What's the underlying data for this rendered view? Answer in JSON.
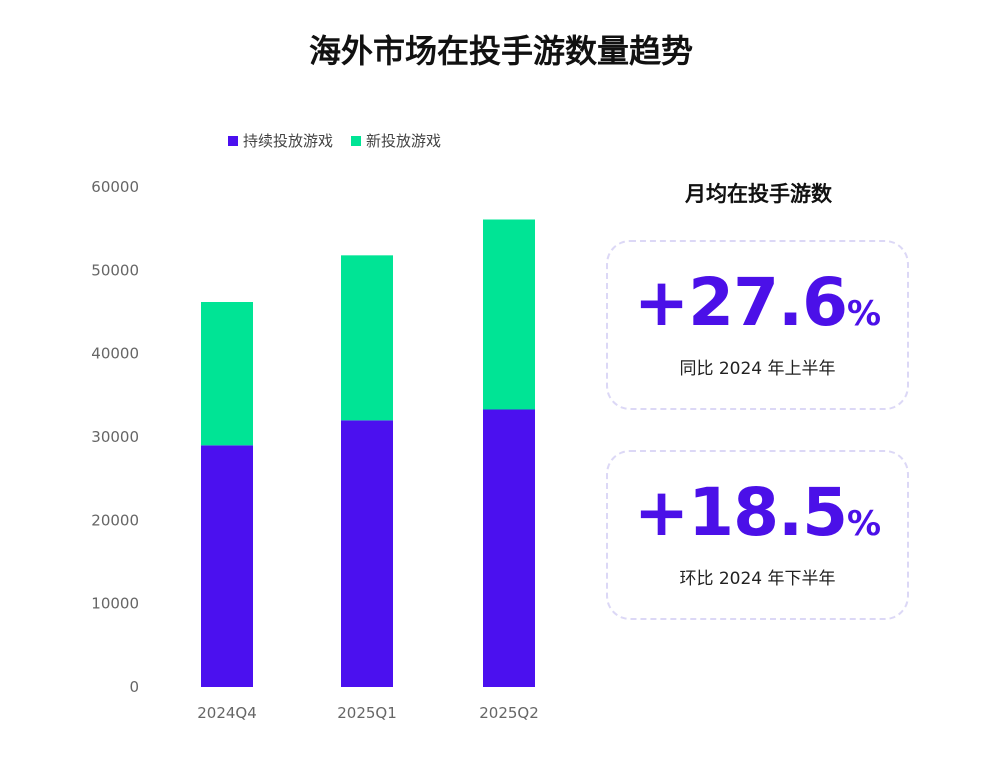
{
  "title": "海外市场在投手游数量趋势",
  "legend": [
    {
      "label": "持续投放游戏",
      "color": "#4b10ef"
    },
    {
      "label": "新投放游戏",
      "color": "#00e495"
    }
  ],
  "chart_data": {
    "type": "bar",
    "stacked": true,
    "title": "海外市场在投手游数量趋势",
    "categories": [
      "2024Q4",
      "2025Q1",
      "2025Q2"
    ],
    "series": [
      {
        "name": "持续投放游戏",
        "color": "#4b10ef",
        "values": [
          29000,
          32000,
          33300
        ]
      },
      {
        "name": "新投放游戏",
        "color": "#00e495",
        "values": [
          17200,
          19800,
          22800
        ]
      }
    ],
    "xlabel": "",
    "ylabel": "",
    "ylim": [
      0,
      60000
    ],
    "yticks": [
      0,
      10000,
      20000,
      30000,
      40000,
      50000,
      60000
    ],
    "grid": false,
    "legend_position": "top-left"
  },
  "panel": {
    "title": "月均在投手游数",
    "stats": [
      {
        "number": "+27.6",
        "unit": "%",
        "caption": "同比 2024 年上半年"
      },
      {
        "number": "+18.5",
        "unit": "%",
        "caption": "环比 2024 年下半年"
      }
    ]
  }
}
